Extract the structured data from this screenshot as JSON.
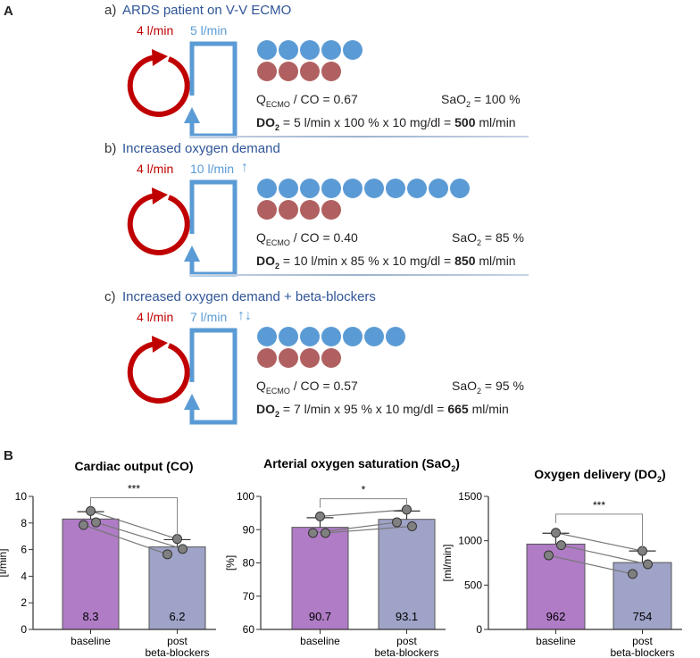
{
  "panel_a": {
    "label": "A",
    "sections": [
      {
        "letter": "a)",
        "title": "ARDS patient on V-V ECMO",
        "native_rate": "4 l/min",
        "ecmo_rate": "5 l/min",
        "arrows": "",
        "blue_count": 5,
        "red_count": 4,
        "q_prefix": "Q",
        "q_sub": "ECMO",
        "q_rest": " / CO = 0.67",
        "sao2_prefix": "SaO",
        "sao2_sub": "2",
        "sao2_rest": " = 100 %",
        "do2_label": "DO",
        "do2_sub": "2",
        "do2_formula": " = 5 l/min x 100 % x 10 mg/dl = ",
        "do2_value": "500",
        "do2_unit": " ml/min"
      },
      {
        "letter": "b)",
        "title": "Increased oxygen demand",
        "native_rate": "4 l/min",
        "ecmo_rate": "10 l/min",
        "arrows": "↑",
        "blue_count": 10,
        "red_count": 4,
        "q_prefix": "Q",
        "q_sub": "ECMO",
        "q_rest": " / CO = 0.40",
        "sao2_prefix": "SaO",
        "sao2_sub": "2",
        "sao2_rest": " = 85 %",
        "do2_label": "DO",
        "do2_sub": "2",
        "do2_formula": " = 10 l/min x  85 % x 10 mg/dl = ",
        "do2_value": "850",
        "do2_unit": " ml/min"
      },
      {
        "letter": "c)",
        "title": "Increased oxygen demand + beta-blockers",
        "native_rate": "4 l/min",
        "ecmo_rate": "7 l/min",
        "arrows": "↑↓",
        "blue_count": 7,
        "red_count": 4,
        "q_prefix": "Q",
        "q_sub": "ECMO",
        "q_rest": " / CO = 0.57",
        "sao2_prefix": "SaO",
        "sao2_sub": "2",
        "sao2_rest": " = 95 %",
        "do2_label": "DO",
        "do2_sub": "2",
        "do2_formula": " = 7 l/min x 95 % x 10 mg/dl = ",
        "do2_value": "665",
        "do2_unit": " ml/min"
      }
    ],
    "colors": {
      "native": "#c00000",
      "ecmo": "#5b9bd5",
      "red_dot": "#b06060",
      "title": "#2f5597"
    }
  },
  "panel_b": {
    "label": "B"
  },
  "chart_data": [
    {
      "type": "bar",
      "title": "Cardiac output (CO)",
      "title_sub": "",
      "title_end": "",
      "ylabel": "[l/min]",
      "ylim": [
        0,
        10
      ],
      "yticks": [
        0,
        2,
        4,
        6,
        8,
        10
      ],
      "categories": [
        "baseline",
        "post\nbeta-blockers"
      ],
      "values": [
        8.3,
        6.2
      ],
      "value_labels": [
        "8.3",
        "6.2"
      ],
      "sd_top": [
        8.85,
        6.75
      ],
      "points": [
        [
          8.9,
          7.85,
          8.05
        ],
        [
          6.8,
          5.65,
          6.05
        ]
      ],
      "pairs": [
        [
          8.9,
          6.8
        ],
        [
          8.05,
          6.05
        ],
        [
          7.85,
          5.65
        ]
      ],
      "significance": "***",
      "bracket_y": 9.9,
      "colors": [
        "#b07cc6",
        "#9fa3c7"
      ]
    },
    {
      "type": "bar",
      "title": "Arterial oxygen saturation (SaO",
      "title_sub": "2",
      "title_end": ")",
      "ylabel": "[%]",
      "ylim": [
        60,
        100
      ],
      "yticks": [
        60,
        70,
        80,
        90,
        100
      ],
      "categories": [
        "baseline",
        "post\nbeta-blockers"
      ],
      "values": [
        90.7,
        93.1
      ],
      "value_labels": [
        "90.7",
        "93.1"
      ],
      "sd_top": [
        93.6,
        95.6
      ],
      "points": [
        [
          94,
          89,
          89
        ],
        [
          96,
          91,
          92.2
        ]
      ],
      "pairs": [
        [
          94,
          96
        ],
        [
          89,
          91
        ],
        [
          89,
          92.2
        ]
      ],
      "significance": "*",
      "bracket_y": 99.3,
      "colors": [
        "#b07cc6",
        "#9fa3c7"
      ]
    },
    {
      "type": "bar",
      "title": "Oxygen delivery (DO",
      "title_sub": "2",
      "title_end": ")",
      "ylabel": "[ml/min]",
      "ylim": [
        0,
        1500
      ],
      "yticks": [
        0,
        500,
        1000,
        1500
      ],
      "categories": [
        "baseline",
        "post\nbeta-blockers"
      ],
      "values": [
        962,
        754
      ],
      "value_labels": [
        "962",
        "754"
      ],
      "sd_top": [
        1085,
        885
      ],
      "points": [
        [
          1090,
          950,
          835
        ],
        [
          885,
          735,
          625
        ]
      ],
      "pairs": [
        [
          1090,
          885
        ],
        [
          950,
          735
        ],
        [
          835,
          625
        ]
      ],
      "significance": "***",
      "bracket_y": 1300,
      "colors": [
        "#b07cc6",
        "#9fa3c7"
      ]
    }
  ],
  "xlabels": {
    "baseline": "baseline",
    "post_line1": "post",
    "post_line2": "beta-blockers"
  }
}
